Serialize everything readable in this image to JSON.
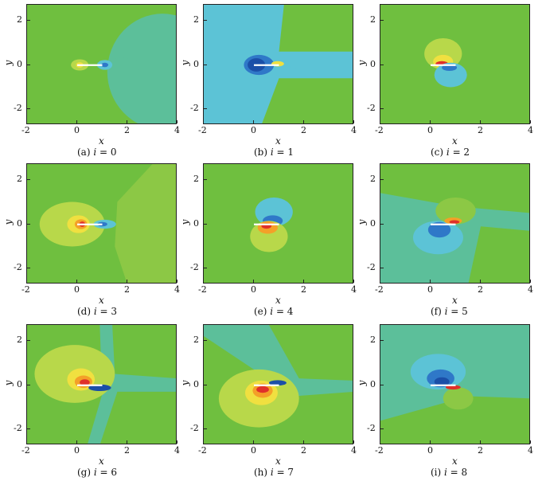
{
  "axes": {
    "x_label": "x",
    "y_label": "y",
    "x_ticks": [
      "-2",
      "0",
      "2",
      "4"
    ],
    "y_ticks": [
      "2",
      "0",
      "-2"
    ]
  },
  "panels": [
    {
      "letter": "(a)",
      "var": "i",
      "eq": "= 0",
      "index": 0
    },
    {
      "letter": "(b)",
      "var": "i",
      "eq": "= 1",
      "index": 1
    },
    {
      "letter": "(c)",
      "var": "i",
      "eq": "= 2",
      "index": 2
    },
    {
      "letter": "(d)",
      "var": "i",
      "eq": "= 3",
      "index": 3
    },
    {
      "letter": "(e)",
      "var": "i",
      "eq": "= 4",
      "index": 4
    },
    {
      "letter": "(f)",
      "var": "i",
      "eq": "= 5",
      "index": 5
    },
    {
      "letter": "(g)",
      "var": "i",
      "eq": "= 6",
      "index": 6
    },
    {
      "letter": "(h)",
      "var": "i",
      "eq": "= 7",
      "index": 7
    },
    {
      "letter": "(i)",
      "var": "i",
      "eq": "= 8",
      "index": 8
    }
  ],
  "colors": {
    "background_green": "#6fbf3f",
    "light_green": "#8cc845",
    "teal": "#5cbf9a",
    "cyan": "#5cc3d6",
    "blue": "#2f78c8",
    "dark_blue": "#1b4fa8",
    "yellow_green": "#b8d84a",
    "yellow": "#f0e040",
    "orange": "#f4a028",
    "red": "#e0302a",
    "plate": "#ffffff"
  }
}
